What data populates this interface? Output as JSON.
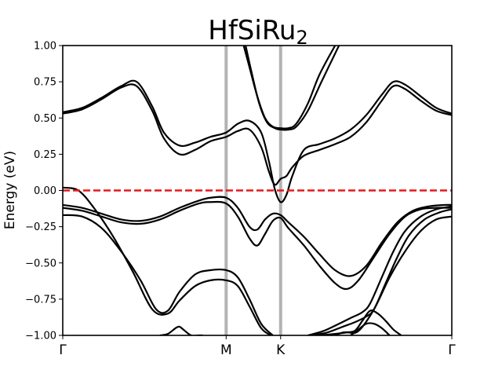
{
  "chart_data": {
    "type": "line",
    "title": "HfSiRu",
    "title_subscript": "2",
    "ylabel": "Energy (eV)",
    "xlabel": "",
    "ylim": [
      -1.0,
      1.0
    ],
    "y_ticks": [
      "1.00",
      "0.75",
      "0.50",
      "0.25",
      "0.00",
      "−0.25",
      "−0.50",
      "−0.75",
      "−1.00"
    ],
    "y_tick_values": [
      1.0,
      0.75,
      0.5,
      0.25,
      0.0,
      -0.25,
      -0.5,
      -0.75,
      -1.0
    ],
    "k_points": [
      {
        "label": "Γ",
        "x": 0.0
      },
      {
        "label": "M",
        "x": 0.42
      },
      {
        "label": "K",
        "x": 0.56
      },
      {
        "label": "Γ",
        "x": 1.0
      }
    ],
    "fermi_level": 0.0,
    "colors": {
      "bands": "#000000",
      "fermi": "#e31a1c",
      "kpath": "#b3b3b3"
    },
    "bands": [
      {
        "x": [
          0.0,
          0.05,
          0.1,
          0.15,
          0.19,
          0.23,
          0.26,
          0.3,
          0.34,
          0.38,
          0.42,
          0.45,
          0.48,
          0.51,
          0.53,
          0.545,
          0.56,
          0.575,
          0.59,
          0.62,
          0.66,
          0.7,
          0.74,
          0.78,
          0.82,
          0.85,
          0.88,
          0.92,
          0.96,
          1.0
        ],
        "y": [
          0.53,
          0.56,
          0.63,
          0.71,
          0.72,
          0.55,
          0.36,
          0.25,
          0.28,
          0.34,
          0.37,
          0.41,
          0.42,
          0.3,
          0.13,
          0.04,
          0.08,
          0.1,
          0.16,
          0.24,
          0.28,
          0.32,
          0.37,
          0.47,
          0.62,
          0.72,
          0.7,
          0.62,
          0.55,
          0.52
        ]
      },
      {
        "x": [
          0.0,
          0.05,
          0.1,
          0.15,
          0.19,
          0.23,
          0.26,
          0.3,
          0.34,
          0.38,
          0.42,
          0.45,
          0.48,
          0.51,
          0.53,
          0.545,
          0.56,
          0.575,
          0.59,
          0.62,
          0.66,
          0.7,
          0.74,
          0.78,
          0.82,
          0.85,
          0.88,
          0.92,
          0.96,
          1.0
        ],
        "y": [
          0.54,
          0.57,
          0.64,
          0.72,
          0.75,
          0.58,
          0.4,
          0.31,
          0.33,
          0.37,
          0.4,
          0.46,
          0.48,
          0.4,
          0.2,
          0.01,
          -0.08,
          -0.03,
          0.1,
          0.28,
          0.32,
          0.36,
          0.42,
          0.52,
          0.66,
          0.75,
          0.73,
          0.65,
          0.57,
          0.53
        ]
      },
      {
        "x": [
          0.465,
          0.48,
          0.5,
          0.52,
          0.54,
          0.56,
          0.58,
          0.6,
          0.63,
          0.66,
          0.7
        ],
        "y": [
          1.0,
          0.85,
          0.65,
          0.5,
          0.44,
          0.43,
          0.43,
          0.46,
          0.6,
          0.8,
          1.0
        ]
      },
      {
        "x": [
          0.47,
          0.485,
          0.505,
          0.525,
          0.545,
          0.56,
          0.58,
          0.6,
          0.63,
          0.665,
          0.71
        ],
        "y": [
          1.0,
          0.82,
          0.6,
          0.47,
          0.43,
          0.42,
          0.42,
          0.44,
          0.55,
          0.75,
          1.0
        ]
      },
      {
        "x": [
          0.0,
          0.05,
          0.1,
          0.15,
          0.2,
          0.25,
          0.3,
          0.35,
          0.38,
          0.42,
          0.45,
          0.48,
          0.5,
          0.52,
          0.54,
          0.56,
          0.58,
          0.62,
          0.66,
          0.7,
          0.74,
          0.78,
          0.82,
          0.86,
          0.9,
          0.94,
          0.98,
          1.0
        ],
        "y": [
          -0.1,
          -0.12,
          -0.16,
          -0.2,
          -0.21,
          -0.18,
          -0.12,
          -0.07,
          -0.05,
          -0.05,
          -0.12,
          -0.25,
          -0.27,
          -0.2,
          -0.16,
          -0.17,
          -0.22,
          -0.32,
          -0.44,
          -0.55,
          -0.59,
          -0.52,
          -0.36,
          -0.22,
          -0.14,
          -0.11,
          -0.1,
          -0.1
        ]
      },
      {
        "x": [
          0.0,
          0.05,
          0.1,
          0.15,
          0.2,
          0.25,
          0.3,
          0.35,
          0.38,
          0.42,
          0.45,
          0.48,
          0.5,
          0.52,
          0.54,
          0.56,
          0.58,
          0.62,
          0.66,
          0.7,
          0.73,
          0.76,
          0.8,
          0.84,
          0.88,
          0.92,
          0.96,
          1.0
        ],
        "y": [
          -0.12,
          -0.14,
          -0.18,
          -0.22,
          -0.23,
          -0.2,
          -0.14,
          -0.09,
          -0.08,
          -0.09,
          -0.18,
          -0.33,
          -0.38,
          -0.3,
          -0.21,
          -0.19,
          -0.26,
          -0.38,
          -0.52,
          -0.64,
          -0.68,
          -0.62,
          -0.46,
          -0.3,
          -0.18,
          -0.13,
          -0.12,
          -0.12
        ]
      },
      {
        "x": [
          0.0,
          0.05,
          0.1,
          0.15,
          0.2,
          0.24,
          0.27,
          0.3,
          0.34,
          0.38,
          0.42,
          0.45,
          0.48,
          0.51,
          0.54
        ],
        "y": [
          -0.17,
          -0.18,
          -0.26,
          -0.42,
          -0.62,
          -0.82,
          -0.83,
          -0.7,
          -0.58,
          -0.55,
          -0.55,
          -0.6,
          -0.75,
          -0.92,
          -1.0
        ]
      },
      {
        "x": [
          0.0,
          0.04,
          0.08,
          0.13,
          0.18,
          0.23,
          0.27,
          0.3,
          0.34,
          0.38,
          0.42,
          0.45,
          0.48,
          0.51,
          0.535
        ],
        "y": [
          0.02,
          0.0,
          -0.12,
          -0.32,
          -0.56,
          -0.82,
          -0.85,
          -0.76,
          -0.66,
          -0.62,
          -0.62,
          -0.66,
          -0.8,
          -0.95,
          -1.0
        ]
      },
      {
        "x": [
          0.25,
          0.27,
          0.29,
          0.3,
          0.31,
          0.33,
          0.35,
          0.36
        ],
        "y": [
          -1.0,
          -0.99,
          -0.95,
          -0.94,
          -0.96,
          -1.0,
          -1.0,
          -1.0
        ]
      },
      {
        "x": [
          0.63,
          0.67,
          0.71,
          0.74,
          0.77,
          0.79,
          0.82,
          0.85,
          0.88,
          0.92,
          0.96,
          1.0
        ],
        "y": [
          -1.0,
          -0.97,
          -0.92,
          -0.88,
          -0.84,
          -0.78,
          -0.6,
          -0.42,
          -0.28,
          -0.18,
          -0.13,
          -0.11
        ]
      },
      {
        "x": [
          0.64,
          0.68,
          0.72,
          0.75,
          0.78,
          0.8,
          0.83,
          0.86,
          0.89,
          0.93,
          0.97,
          1.0
        ],
        "y": [
          -1.0,
          -0.98,
          -0.94,
          -0.91,
          -0.87,
          -0.82,
          -0.64,
          -0.46,
          -0.31,
          -0.2,
          -0.15,
          -0.13
        ]
      },
      {
        "x": [
          0.66,
          0.7,
          0.73,
          0.76,
          0.8,
          0.84,
          0.88,
          0.92,
          0.96,
          1.0
        ],
        "y": [
          -1.0,
          -0.99,
          -0.98,
          -0.97,
          -0.82,
          -0.6,
          -0.42,
          -0.28,
          -0.2,
          -0.18
        ]
      },
      {
        "x": [
          0.7,
          0.72,
          0.75,
          0.77,
          0.79,
          0.81,
          0.83,
          0.85,
          0.87
        ],
        "y": [
          -1.0,
          -0.98,
          -0.97,
          -0.9,
          -0.83,
          -0.85,
          -0.9,
          -0.96,
          -1.0
        ]
      },
      {
        "x": [
          0.74,
          0.76,
          0.78,
          0.8,
          0.82,
          0.84
        ],
        "y": [
          -1.0,
          -0.96,
          -0.92,
          -0.92,
          -0.95,
          -1.0
        ]
      }
    ]
  }
}
